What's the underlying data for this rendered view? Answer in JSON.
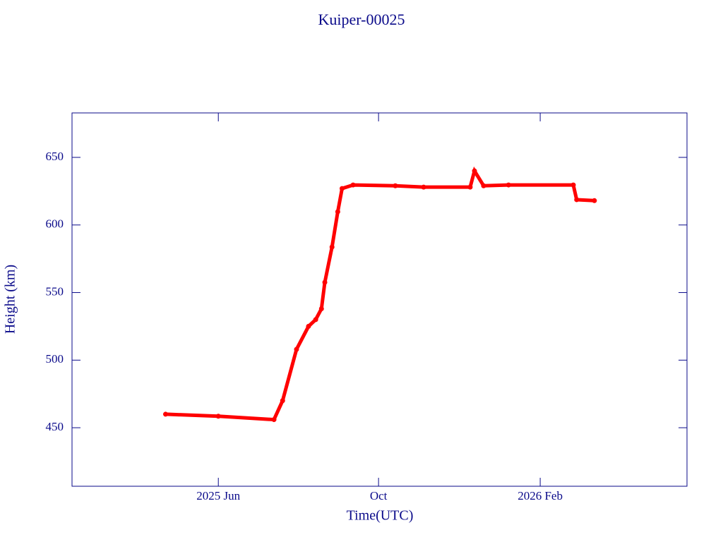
{
  "chart_data": {
    "type": "line",
    "title": "Kuiper-00025",
    "x_label": "Time(UTC)",
    "y_label": "Height (km)",
    "x": [
      2025.304,
      2025.414,
      2025.53,
      2025.548,
      2025.577,
      2025.602,
      2025.617,
      2025.629,
      2025.636,
      2025.651,
      2025.663,
      2025.672,
      2025.695,
      2025.783,
      2025.842,
      2025.939,
      2025.948,
      2025.967,
      2026.019,
      2026.154,
      2026.161,
      2026.198
    ],
    "series": [
      {
        "color": "#ff0000",
        "values": [
          460,
          458.5,
          456,
          470,
          508,
          525,
          530,
          538,
          557.6,
          583.7,
          609.8,
          627,
          629.6,
          629,
          628,
          628,
          640,
          629,
          629.6,
          629.6,
          618.7,
          618
        ]
      }
    ],
    "xlim": [
      2025.109,
      2026.391
    ],
    "xticks": [
      {
        "value": 2025.414,
        "label": "2025 Jun"
      },
      {
        "value": 2025.748,
        "label": "Oct"
      },
      {
        "value": 2026.085,
        "label": "2026 Feb"
      }
    ],
    "ylim": [
      406.7,
      682.9
    ],
    "yticks": [
      450,
      500,
      550,
      600,
      650
    ],
    "axis_color": "#0a0a8a"
  }
}
